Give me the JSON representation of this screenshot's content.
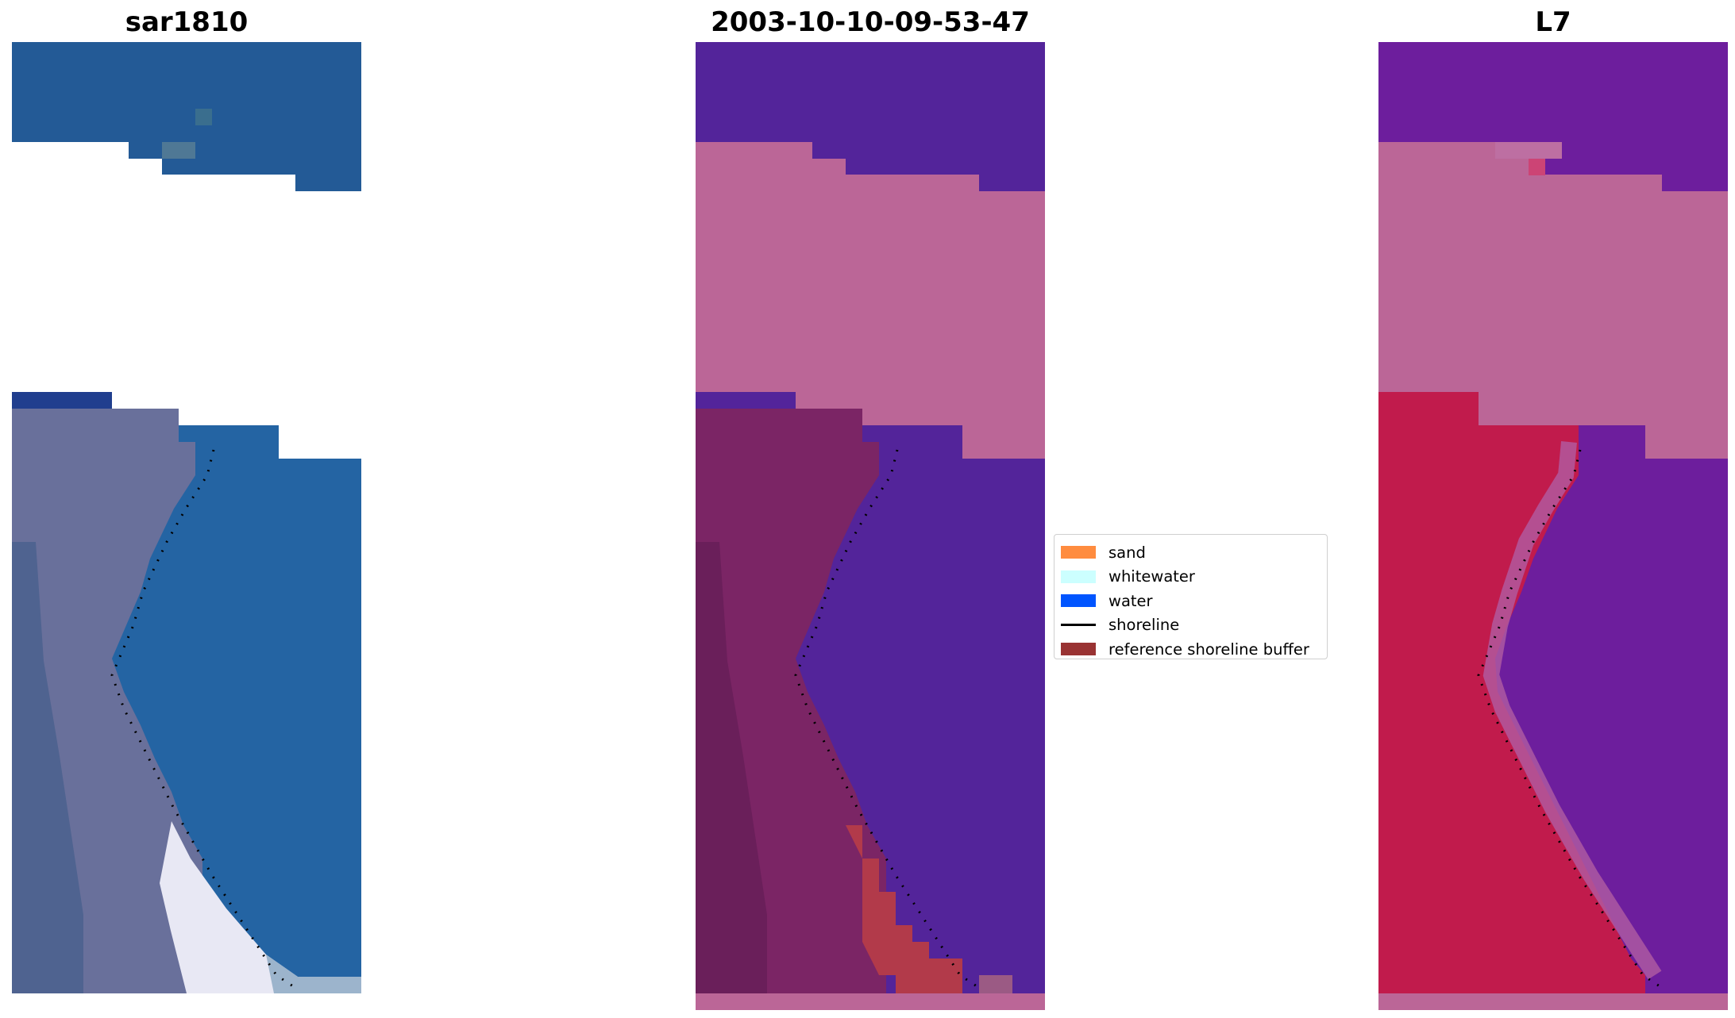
{
  "panels": [
    {
      "title": "sar1810"
    },
    {
      "title": "2003-10-10-09-53-47"
    },
    {
      "title": "L7"
    }
  ],
  "legend": {
    "items": [
      {
        "label": "sand",
        "color": "#ff8c3f",
        "kind": "patch"
      },
      {
        "label": "whitewater",
        "color": "#ccffff",
        "kind": "patch"
      },
      {
        "label": "water",
        "color": "#0055ff",
        "kind": "patch"
      },
      {
        "label": "shoreline",
        "color": "#000000",
        "kind": "line"
      },
      {
        "label": "reference shoreline buffer",
        "color": "#993333",
        "kind": "patch"
      }
    ]
  },
  "colors": {
    "rgb_water": "#235a96",
    "rgb_land": "#6e739e",
    "rgb_surf": "#ecebf6",
    "class_water": "#53249a",
    "class_land": "#7b2565",
    "class_nodata": "#bb6697",
    "class_buffer": "#b23a4a",
    "mndwi_water": "#6d1e9d",
    "mndwi_land": "#c11b4c",
    "mndwi_nodata": "#bb6697"
  }
}
